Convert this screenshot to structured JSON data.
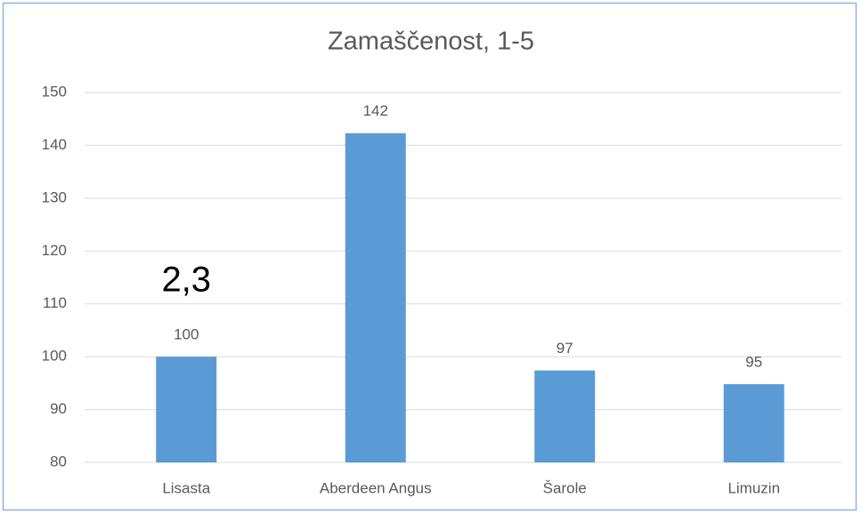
{
  "chart_data": {
    "type": "bar",
    "title": "Zamaščenost, 1-5",
    "categories": [
      "Lisasta",
      "Aberdeen Angus",
      "Šarole",
      "Limuzin"
    ],
    "values": [
      100,
      142.3,
      97.4,
      94.8
    ],
    "value_labels": [
      "100",
      "142",
      "97",
      "95"
    ],
    "color": "#5b9bd5",
    "ylim": [
      80,
      150
    ],
    "yticks": [
      80,
      90,
      100,
      110,
      120,
      130,
      140,
      150
    ],
    "grid": true,
    "annotations": [
      {
        "text": "2,3",
        "category": "Lisasta"
      }
    ]
  }
}
